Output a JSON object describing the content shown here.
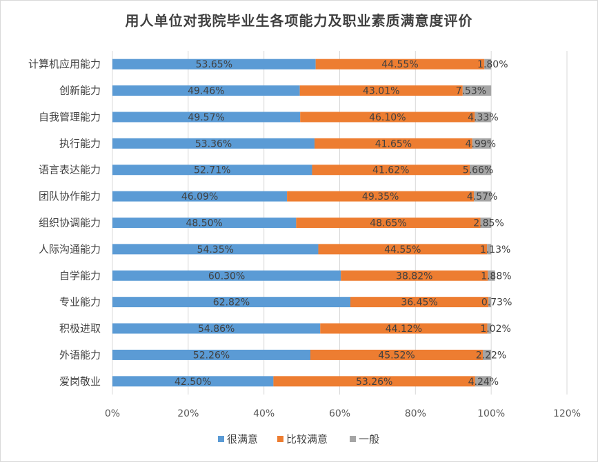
{
  "chart_data": {
    "type": "bar",
    "orientation": "horizontal",
    "stacked": true,
    "title": "用人单位对我院毕业生各项能力及职业素质满意度评价",
    "categories": [
      "计算机应用能力",
      "创新能力",
      "自我管理能力",
      "执行能力",
      "语言表达能力",
      "团队协作能力",
      "组织协调能力",
      "人际沟通能力",
      "自学能力",
      "专业能力",
      "积极进取",
      "外语能力",
      "爱岗敬业"
    ],
    "series": [
      {
        "name": "很满意",
        "color": "#5b9bd5",
        "values": [
          53.65,
          49.46,
          49.57,
          53.36,
          52.71,
          46.09,
          48.5,
          54.35,
          60.3,
          62.82,
          54.86,
          52.26,
          42.5
        ],
        "labels": [
          "53.65%",
          "49.46%",
          "49.57%",
          "53.36%",
          "52.71%",
          "46.09%",
          "48.50%",
          "54.35%",
          "60.30%",
          "62.82%",
          "54.86%",
          "52.26%",
          "42.50%"
        ]
      },
      {
        "name": "比较满意",
        "color": "#ed7d31",
        "values": [
          44.55,
          43.01,
          46.1,
          41.65,
          41.62,
          49.35,
          48.65,
          44.55,
          38.82,
          36.45,
          44.12,
          45.52,
          53.26
        ],
        "labels": [
          "44.55%",
          "43.01%",
          "46.10%",
          "41.65%",
          "41.62%",
          "49.35%",
          "48.65%",
          "44.55%",
          "38.82%",
          "36.45%",
          "44.12%",
          "45.52%",
          "53.26%"
        ]
      },
      {
        "name": "一般",
        "color": "#a5a5a5",
        "values": [
          1.8,
          7.53,
          4.33,
          4.99,
          5.66,
          4.57,
          2.85,
          1.13,
          1.88,
          0.73,
          1.02,
          2.22,
          4.24
        ],
        "labels": [
          "1.80%",
          "7.53%",
          "4.33%",
          "4.99%",
          "5.66%",
          "4.57%",
          "2.85%",
          "1.13%",
          "1.88%",
          "0.73%",
          "1.02%",
          "2.22%",
          "4.24%"
        ]
      }
    ],
    "xlim": [
      0,
      120
    ],
    "xticks": [
      "0%",
      "20%",
      "40%",
      "60%",
      "80%",
      "100%",
      "120%"
    ],
    "grid": true,
    "legend_position": "bottom"
  }
}
